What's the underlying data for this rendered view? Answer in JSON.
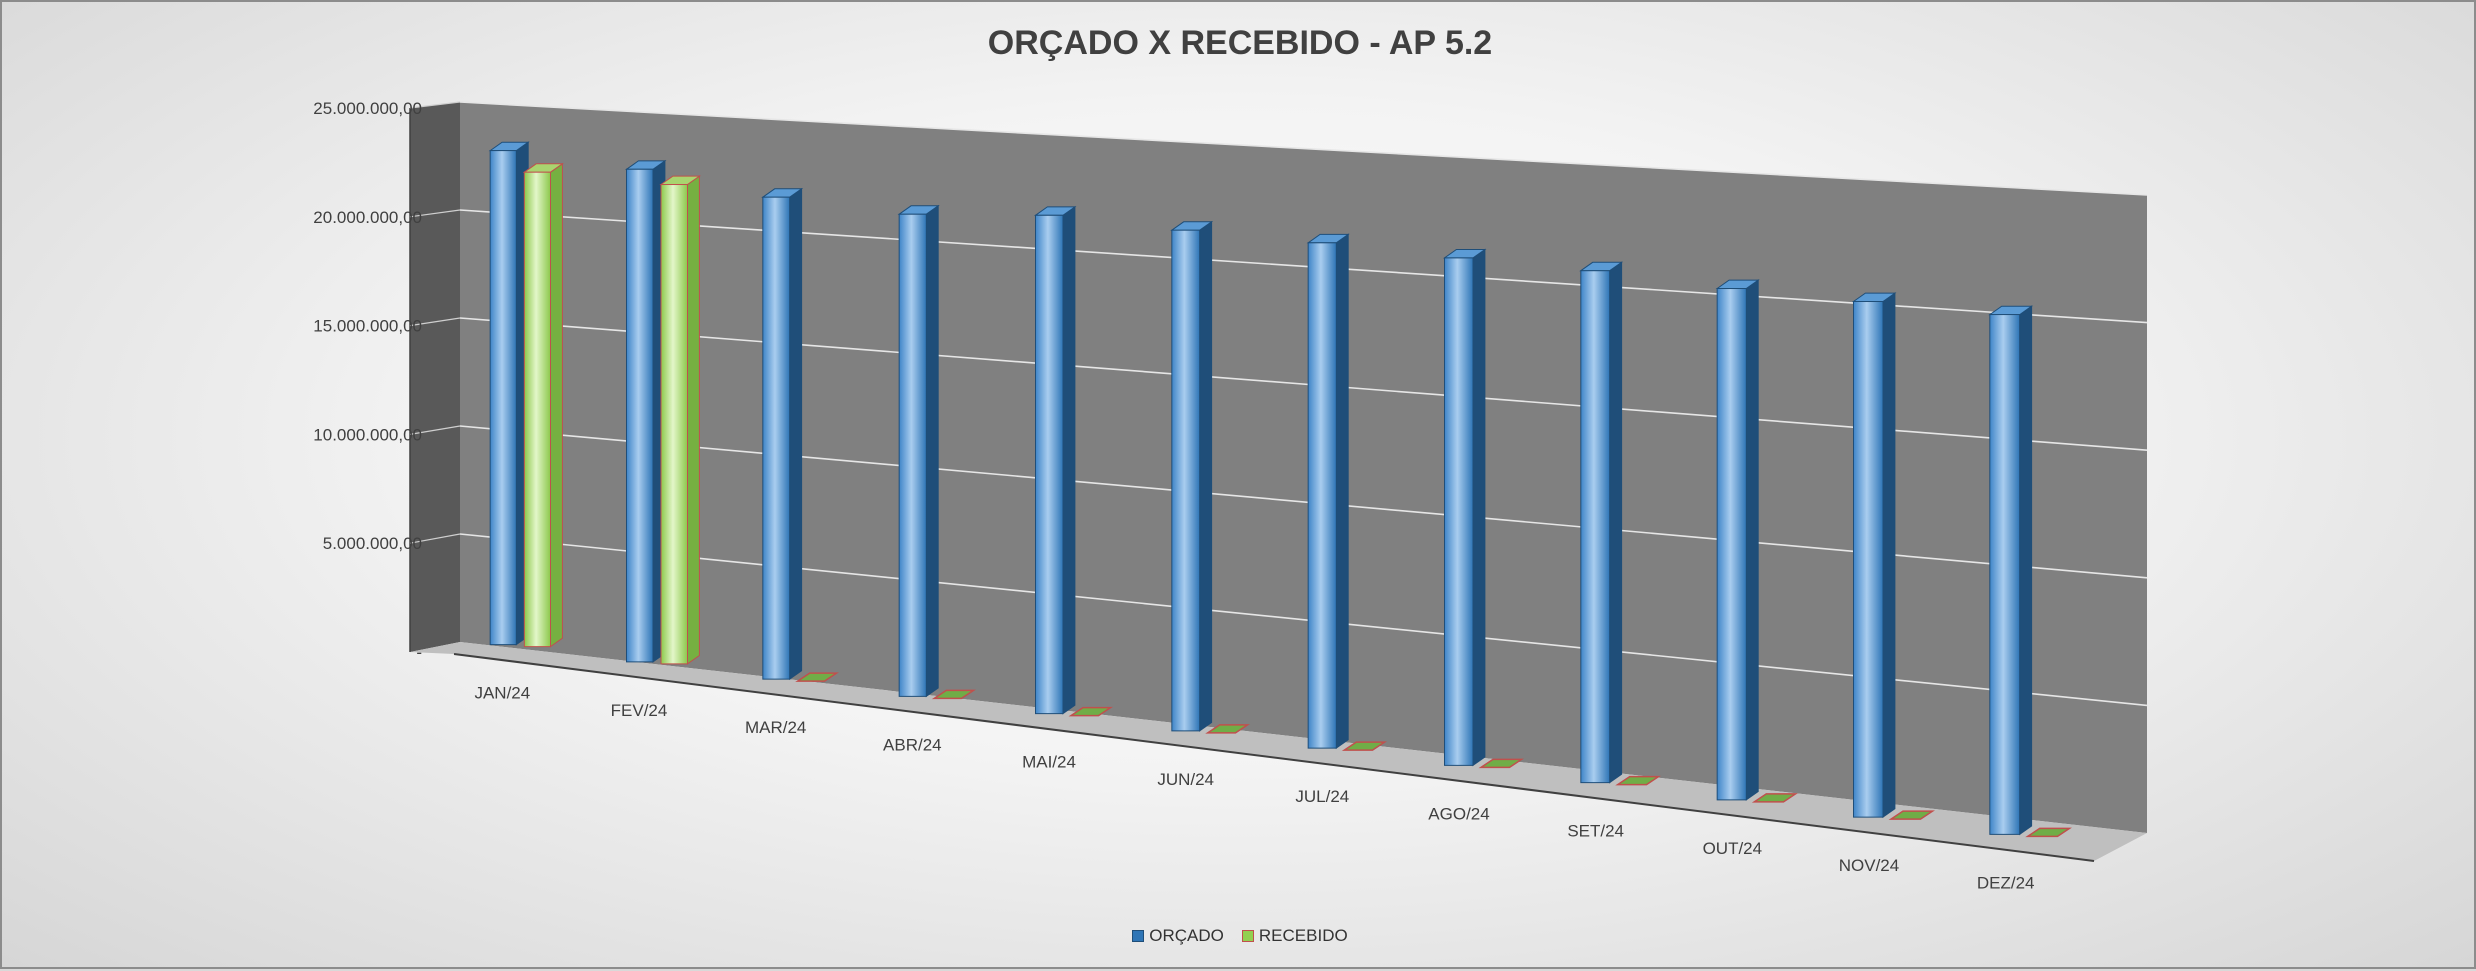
{
  "chart_data": {
    "type": "bar",
    "title": "ORÇADO X RECEBIDO - AP 5.2",
    "categories": [
      "JAN/24",
      "FEV/24",
      "MAR/24",
      "ABR/24",
      "MAI/24",
      "JUN/24",
      "JUL/24",
      "AGO/24",
      "SET/24",
      "OUT/24",
      "NOV/24",
      "DEZ/24"
    ],
    "series": [
      {
        "name": "ORÇADO",
        "color": "#2e75b6",
        "values": [
          22700000,
          22300000,
          21500000,
          21200000,
          21600000,
          21400000,
          21300000,
          21100000,
          21000000,
          20700000,
          20600000,
          20500000
        ]
      },
      {
        "name": "RECEBIDO",
        "color": "#92d050",
        "values": [
          21800000,
          21700000,
          0,
          0,
          0,
          0,
          0,
          0,
          0,
          0,
          0,
          0
        ]
      }
    ],
    "ylim": [
      0,
      25000000
    ],
    "yticks": [
      "-",
      "5.000.000,00",
      "10.000.000,00",
      "15.000.000,00",
      "20.000.000,00",
      "25.000.000,00"
    ],
    "grid": true,
    "legend_position": "bottom",
    "view": "3D perspective"
  }
}
